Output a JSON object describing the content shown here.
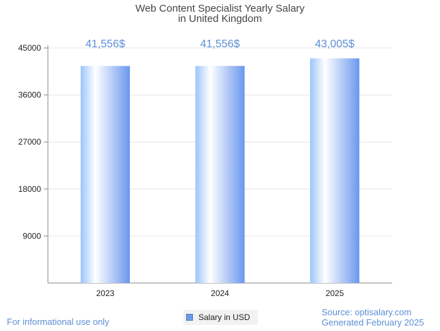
{
  "chart_data": {
    "type": "bar",
    "title": "Web Content Specialist Yearly Salary",
    "subtitle": "in United Kingdom",
    "categories": [
      "2023",
      "2024",
      "2025"
    ],
    "series": [
      {
        "name": "Salary in USD",
        "values": [
          41556,
          41556,
          43005
        ]
      }
    ],
    "data_labels": [
      "41,556$",
      "41,556$",
      "43,005$"
    ],
    "yticks": [
      9000,
      18000,
      27000,
      36000,
      45000
    ],
    "ylim": [
      0,
      45000
    ],
    "xlabel": "",
    "ylabel": "",
    "grid": true,
    "legend": "bottom-center",
    "colors": {
      "bar_dark": "#6a97ee",
      "bar_light": "#ffffff",
      "bar_mid": "#b7d4fb",
      "label": "#5b8fd6"
    }
  },
  "footer": {
    "note": "For informational use only",
    "source": "Source: optisalary.com",
    "generated": "Generated February 2025"
  }
}
